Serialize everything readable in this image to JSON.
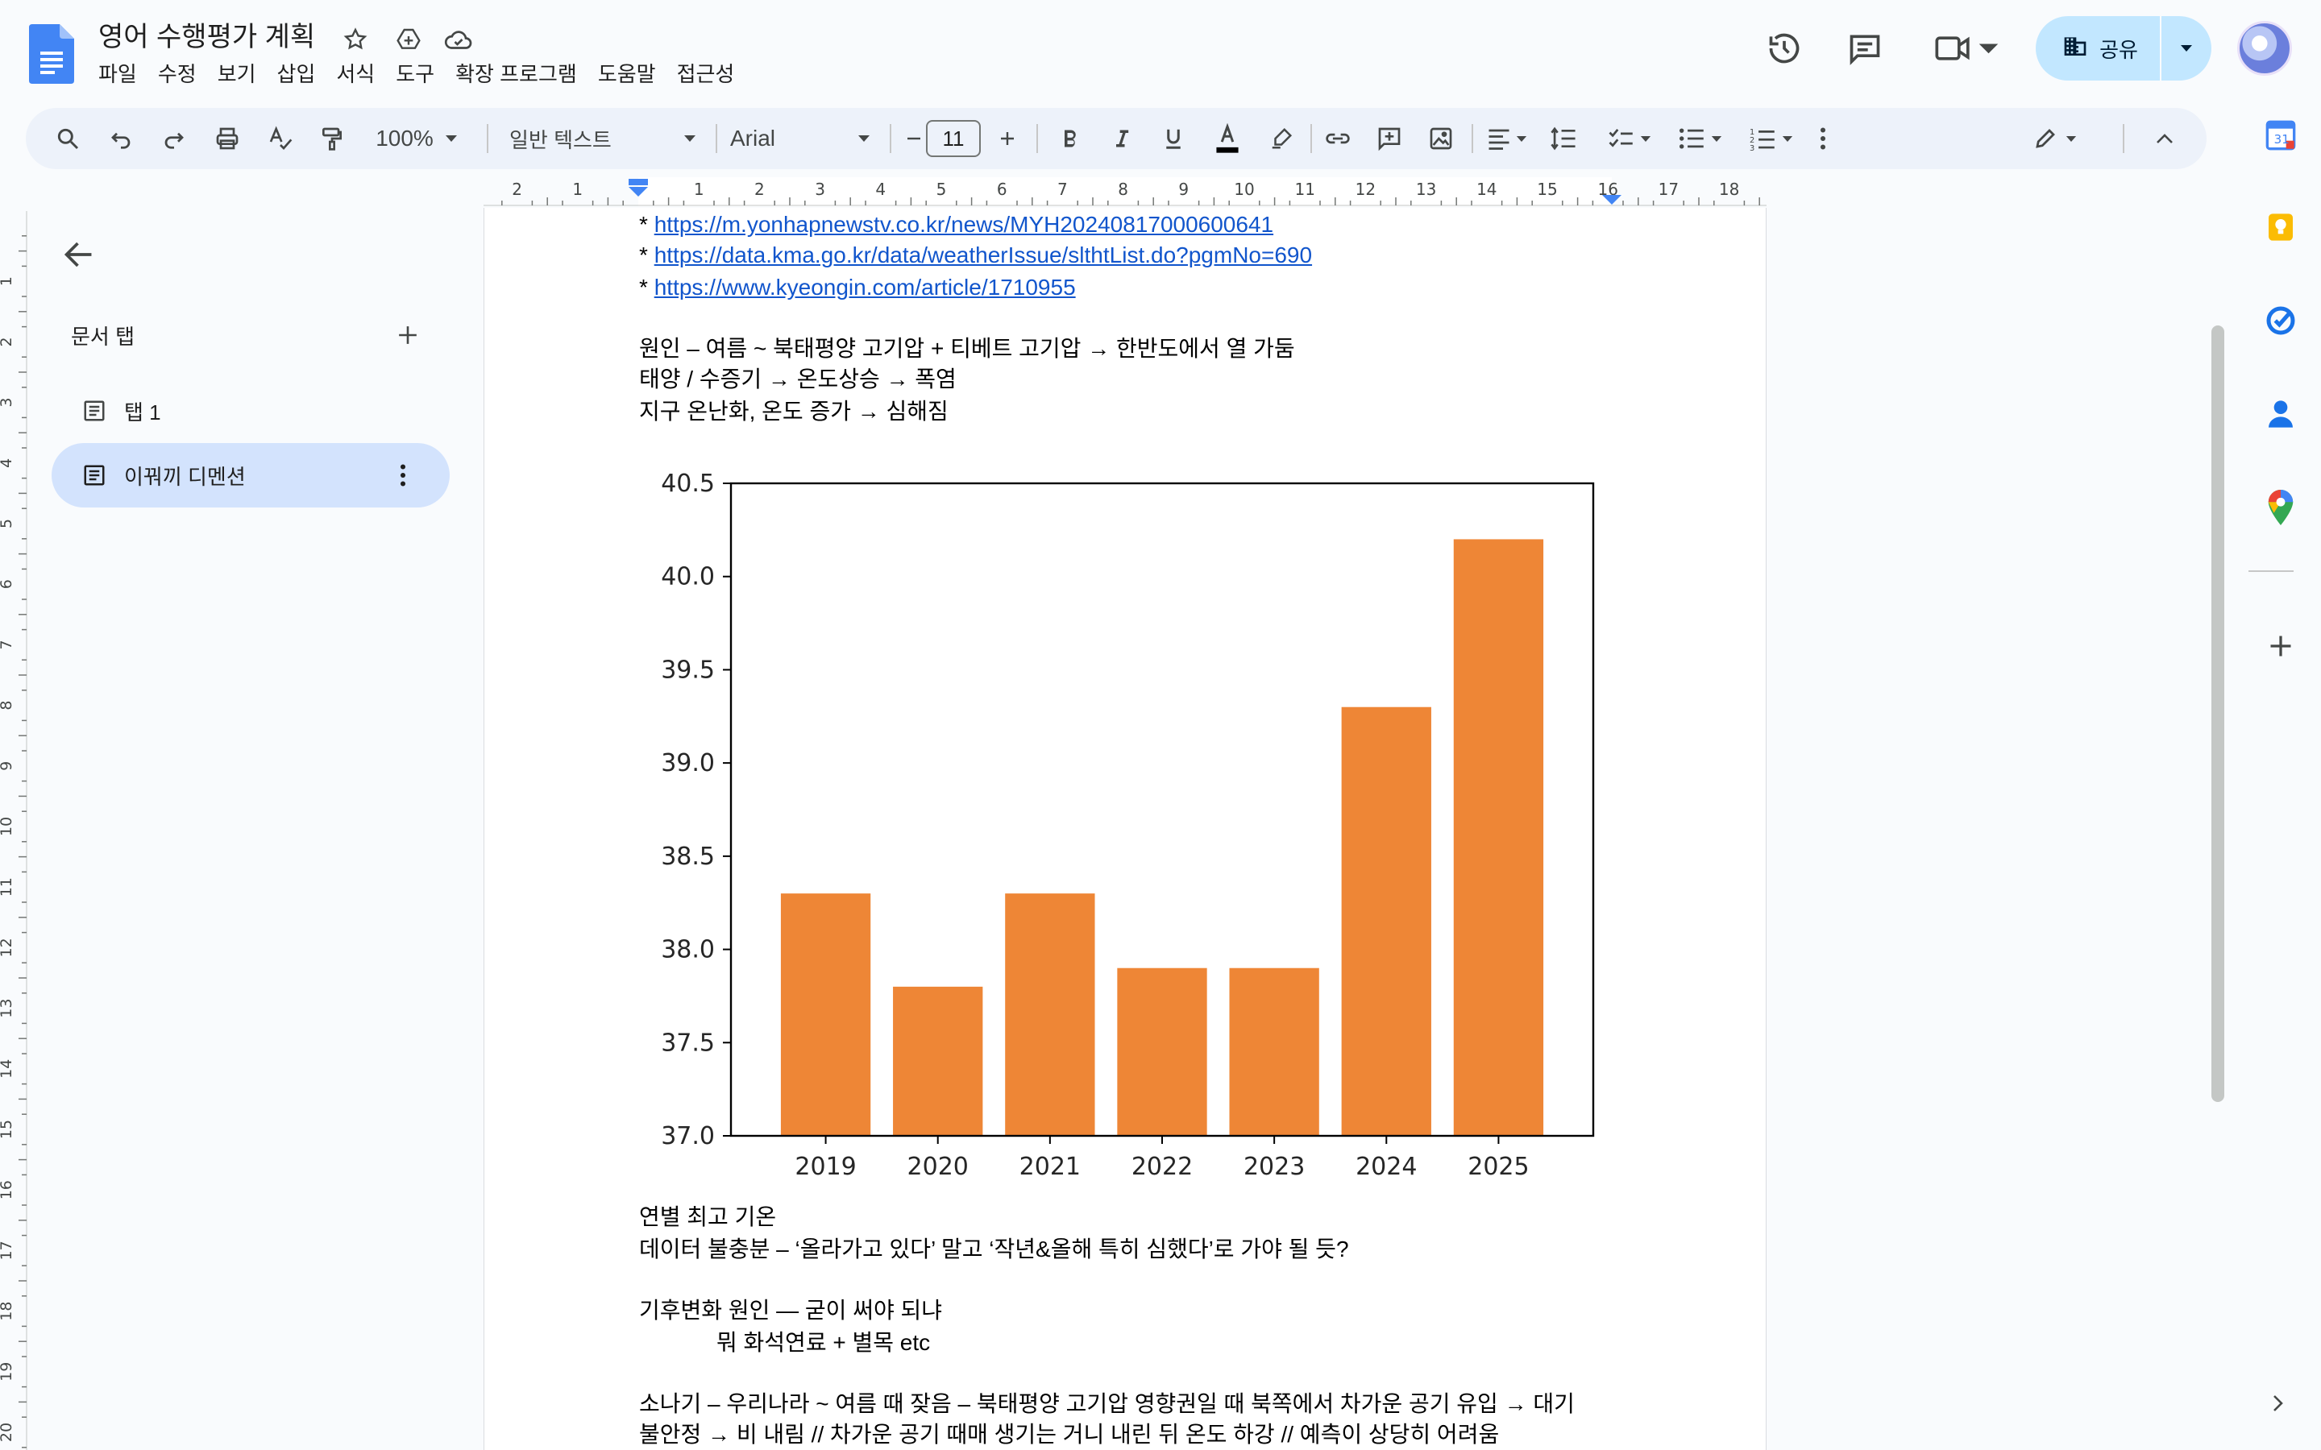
{
  "document": {
    "title": "영어 수행평가 계획"
  },
  "menu": [
    "파일",
    "수정",
    "보기",
    "삽입",
    "서식",
    "도구",
    "확장 프로그램",
    "도움말",
    "접근성"
  ],
  "header": {
    "share_label": "공유"
  },
  "toolbar": {
    "zoom": "100%",
    "style": "일반 텍스트",
    "font": "Arial",
    "font_size": "11"
  },
  "ruler": {
    "labels": [
      "2",
      "1",
      "1",
      "2",
      "3",
      "4",
      "5",
      "6",
      "7",
      "8",
      "9",
      "10",
      "11",
      "12",
      "13",
      "14",
      "15",
      "16",
      "17",
      "18"
    ],
    "vertical_labels": [
      "1",
      "2",
      "3",
      "4",
      "5",
      "6",
      "7",
      "8",
      "9",
      "10",
      "11",
      "12",
      "13",
      "14",
      "15",
      "16",
      "17",
      "18",
      "19",
      "20"
    ]
  },
  "sidebar": {
    "heading": "문서 탭",
    "tabs": [
      {
        "label": "탭 1"
      },
      {
        "label": "이꿔끼 디멘션"
      }
    ]
  },
  "content": {
    "links": [
      {
        "bullet": "*",
        "url": "https://m.yonhapnewstv.co.kr/news/MYH20240817000600641"
      },
      {
        "bullet": "*",
        "url": "https://data.kma.go.kr/data/weatherIssue/slthtList.do?pgmNo=690"
      },
      {
        "bullet": "*",
        "url": "https://www.kyeongin.com/article/1710955"
      }
    ],
    "cause_lines": [
      "원인 – 여름 ~ 북태평양 고기압 + 티베트 고기압 → 한반도에서 열 가둠",
      "태양 / 수증기 → 온도상승 → 폭염",
      "지구 온난화, 온도 증가 → 심해짐"
    ],
    "after_chart_lines": [
      "연별 최고 기온",
      "데이터 불충분 – ‘올라가고 있다’ 말고 ‘작년&올해 특히 심했다’로 가야 될 듯?"
    ],
    "climate_lines": [
      "기후변화 원인 — 굳이 써야 되냐",
      "뭐 화석연료 + 별목 etc"
    ],
    "shower_lines": [
      "소나기 – 우리나라 ~ 여름 때 잦음 – 북태평양 고기압 영향권일 때 북쪽에서 차가운 공기 유입 → 대기",
      "불안정 → 비 내림 // 차가운 공기 때매 생기는 거니 내린 뒤 온도 하강 // 예측이 상당히 어려움"
    ]
  },
  "chart_data": {
    "type": "bar",
    "categories": [
      "2019",
      "2020",
      "2021",
      "2022",
      "2023",
      "2024",
      "2025"
    ],
    "values": [
      38.3,
      37.8,
      38.3,
      37.9,
      37.9,
      39.3,
      40.2
    ],
    "yticks": [
      "37.0",
      "37.5",
      "38.0",
      "38.5",
      "39.0",
      "39.5",
      "40.0",
      "40.5"
    ],
    "ylim": [
      37.0,
      40.5
    ],
    "bar_color": "#ee8636",
    "title": "",
    "xlabel": "",
    "ylabel": ""
  },
  "colors": {
    "accent": "#0b57d0",
    "share_bg": "#c2e7ff",
    "active_tab": "#d3e3fd",
    "link": "#1155cc"
  },
  "icons": {
    "title_bar": [
      "star-icon",
      "move-to-drive-icon",
      "cloud-saved-icon"
    ],
    "header": [
      "version-history-icon",
      "comments-icon",
      "meet-icon",
      "share-domain-icon",
      "avatar"
    ],
    "side_panel": [
      "calendar-icon",
      "keep-icon",
      "tasks-icon",
      "contacts-icon",
      "maps-icon",
      "add-icon"
    ]
  }
}
